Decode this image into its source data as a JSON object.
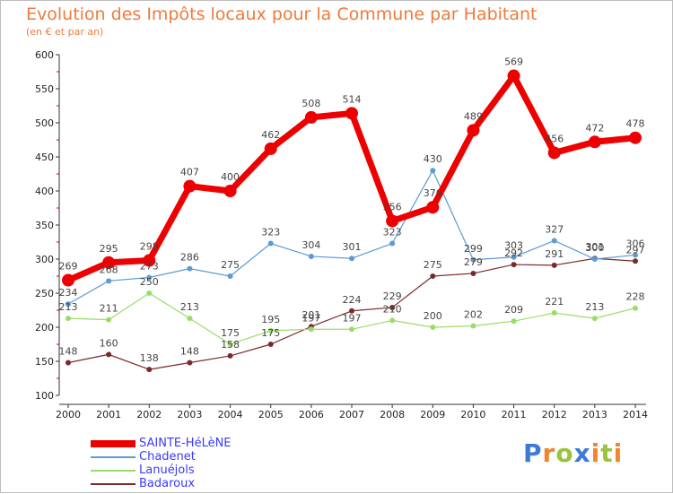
{
  "title": "Evolution des Impôts locaux pour la Commune par Habitant",
  "subtitle": "(en € et par an)",
  "logo": {
    "text": "Proxiti",
    "letters": [
      {
        "ch": "P",
        "color": "#3d7bd8"
      },
      {
        "ch": "r",
        "color": "#f0862c"
      },
      {
        "ch": "o",
        "color": "#9ac43c"
      },
      {
        "ch": "x",
        "color": "#3d7bd8"
      },
      {
        "ch": "i",
        "color": "#f0862c"
      },
      {
        "ch": "t",
        "color": "#9ac43c"
      },
      {
        "ch": "i",
        "color": "#f0862c"
      }
    ]
  },
  "chart_data": {
    "type": "line",
    "title": "Evolution des Impôts locaux pour la Commune par Habitant",
    "subtitle": "(en € et par an)",
    "xlabel": "",
    "ylabel": "",
    "x": [
      "2000",
      "2001",
      "2002",
      "2003",
      "2004",
      "2005",
      "2006",
      "2007",
      "2008",
      "2009",
      "2010",
      "2011",
      "2012",
      "2013",
      "2014"
    ],
    "ylim": [
      100,
      600
    ],
    "yticks": [
      100,
      150,
      200,
      250,
      300,
      350,
      400,
      450,
      500,
      550,
      600
    ],
    "grid": false,
    "legend_position": "bottom-left",
    "series": [
      {
        "name": "SAINTE-HéLèNE",
        "color": "#ee0000",
        "width": 7,
        "marker": 7,
        "values": [
          269,
          295,
          298,
          407,
          400,
          462,
          508,
          514,
          356,
          376,
          489,
          569,
          456,
          472,
          478
        ],
        "labels": [
          "269",
          "295",
          "298",
          "407",
          "400",
          "462",
          "508",
          "514",
          "356",
          "376",
          "489",
          "569",
          "456",
          "472",
          "478"
        ]
      },
      {
        "name": "Chadenet",
        "color": "#5b9bd5",
        "width": 1.2,
        "marker": 3,
        "values": [
          234,
          268,
          273,
          286,
          275,
          323,
          304,
          301,
          323,
          430,
          299,
          303,
          327,
          300,
          306
        ],
        "labels": [
          "234",
          "268",
          "273",
          "286",
          "275",
          "323",
          "304",
          "301",
          "323",
          "430",
          "299",
          "303",
          "327",
          "300",
          "306"
        ]
      },
      {
        "name": "Lanuéjols",
        "color": "#99dd66",
        "width": 1.2,
        "marker": 3,
        "values": [
          213,
          211,
          250,
          213,
          175,
          195,
          197,
          197,
          210,
          200,
          202,
          209,
          221,
          213,
          228
        ],
        "labels": [
          "213",
          "211",
          "250",
          "213",
          "175",
          "195",
          "197",
          "197",
          "210",
          "200",
          "202",
          "209",
          "221",
          "213",
          "228"
        ]
      },
      {
        "name": "Badaroux",
        "color": "#7a2a2a",
        "width": 1.2,
        "marker": 3,
        "values": [
          148,
          160,
          138,
          148,
          158,
          175,
          201,
          224,
          229,
          275,
          279,
          292,
          291,
          301,
          297
        ],
        "labels": [
          "148",
          "160",
          "138",
          "148",
          "158",
          "175",
          "201",
          "224",
          "229",
          "275",
          "279",
          "292",
          "291",
          "301",
          "297"
        ]
      }
    ]
  }
}
